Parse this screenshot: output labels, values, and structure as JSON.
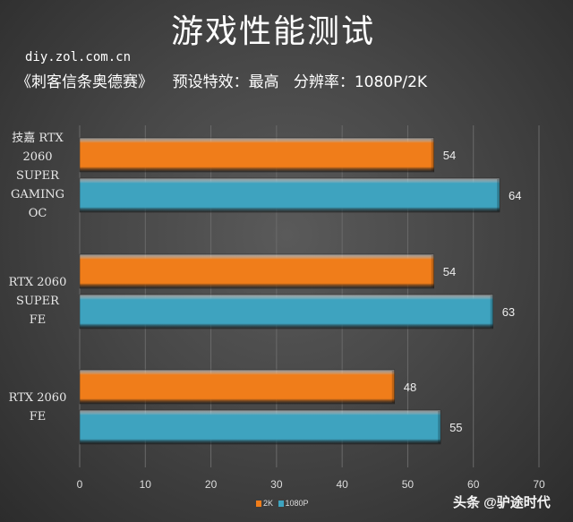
{
  "header": {
    "title": "游戏性能测试",
    "site": "diy.zol.com.cn",
    "subtitle": "《刺客信条奥德赛》    预设特效：最高   分辨率：1080P/2K"
  },
  "watermark": "头条 @驴途时代",
  "chart_data": {
    "type": "bar",
    "orientation": "horizontal",
    "title": "游戏性能测试",
    "categories": [
      "技嘉 RTX 2060 SUPER GAMING OC",
      "RTX 2060 SUPER FE",
      "RTX 2060 FE"
    ],
    "category_lines": [
      [
        "技嘉 RTX",
        "2060",
        "SUPER",
        "GAMING",
        "OC"
      ],
      [
        "RTX 2060",
        "SUPER FE"
      ],
      [
        "RTX 2060",
        "FE"
      ]
    ],
    "series": [
      {
        "name": "2K",
        "color": "#f07d1a",
        "values": [
          54,
          54,
          48
        ]
      },
      {
        "name": "1080P",
        "color": "#3ea3bf",
        "values": [
          64,
          63,
          55
        ]
      }
    ],
    "xlim": [
      0,
      70
    ],
    "xticks": [
      0,
      10,
      20,
      30,
      40,
      50,
      60,
      70
    ],
    "grid": true,
    "legend": "bottom",
    "data_labels": true
  }
}
